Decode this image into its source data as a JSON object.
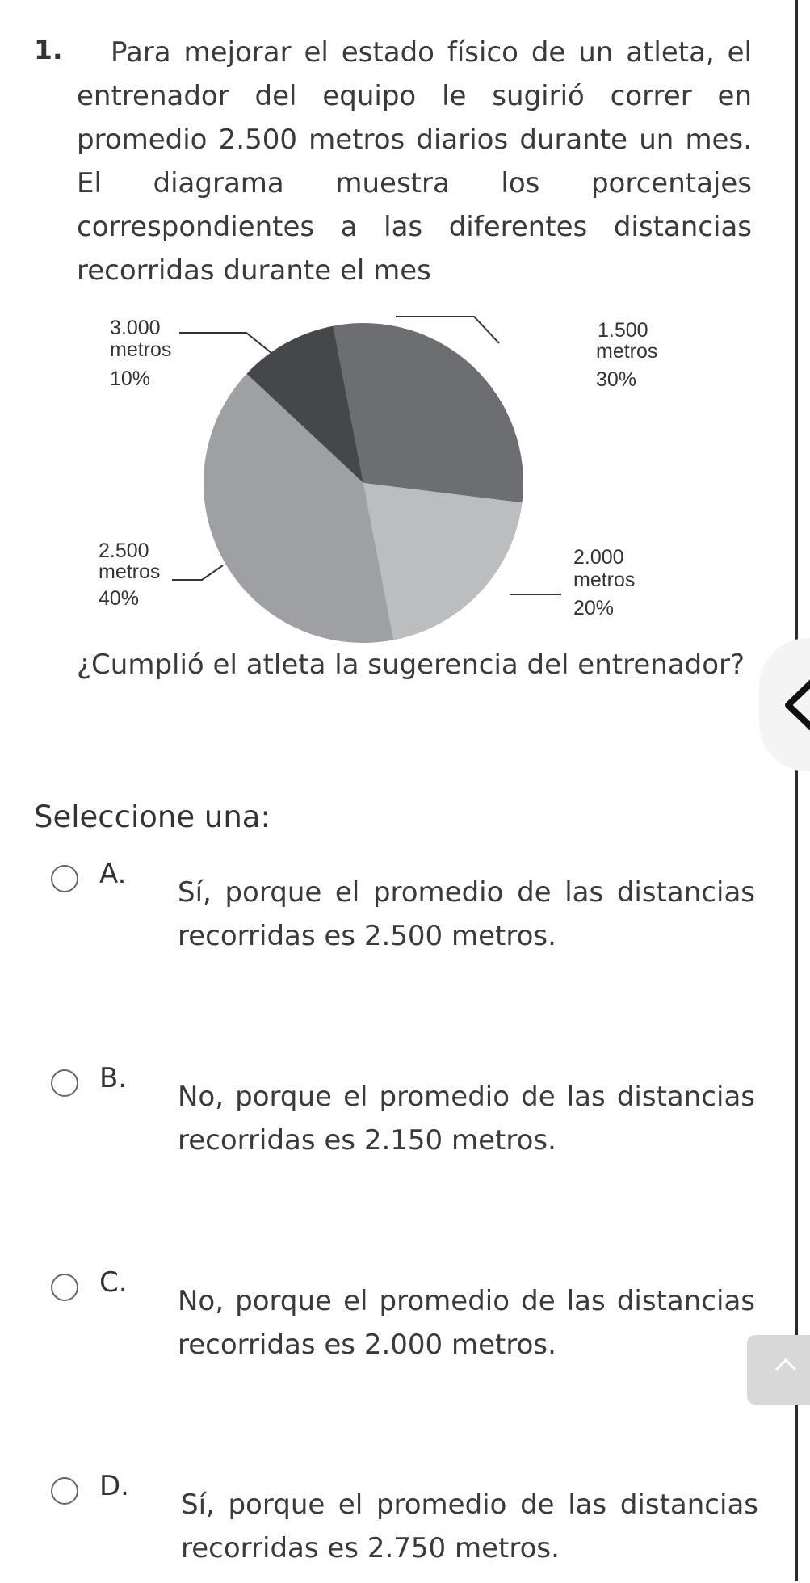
{
  "question": {
    "number": "1.",
    "text": "Para mejorar el estado físico de un atleta, el entrenador del equipo le sugirió correr en promedio 2.500 metros diarios durante un mes. El diagrama muestra los porcentajes correspondientes a las diferentes distancias recorridas durante el mes",
    "prompt": "¿Cumplió el atleta la sugerencia del entrenador?"
  },
  "chart_data": {
    "type": "pie",
    "slices": [
      {
        "label": "1.500",
        "unit": "metros",
        "percent_label": "30%",
        "value": 30,
        "color": "#6d6e71"
      },
      {
        "label": "2.000",
        "unit": "metros",
        "percent_label": "20%",
        "value": 20,
        "color": "#bcbdbf"
      },
      {
        "label": "2.500",
        "unit": "metros",
        "percent_label": "40%",
        "value": 40,
        "color": "#9fa0a3"
      },
      {
        "label": "3.000",
        "unit": "metros",
        "percent_label": "10%",
        "value": 10,
        "color": "#46474a"
      }
    ]
  },
  "answer_section": {
    "label": "Seleccione una:",
    "options": [
      {
        "letter": "A.",
        "text": "Sí, porque el promedio de las distancias recorridas es 2.500 metros."
      },
      {
        "letter": "B.",
        "text": "No, porque el promedio de las distancias recorridas es 2.150 metros."
      },
      {
        "letter": "C.",
        "text": "No, porque el promedio de las distancias recorridas es 2.000 metros."
      },
      {
        "letter": "D.",
        "text": "Sí, porque el promedio de las distancias recorridas es 2.750 metros."
      }
    ]
  },
  "icons": {
    "side_tab": "chevron-left-icon",
    "scroll_top": "chevron-up-icon"
  }
}
